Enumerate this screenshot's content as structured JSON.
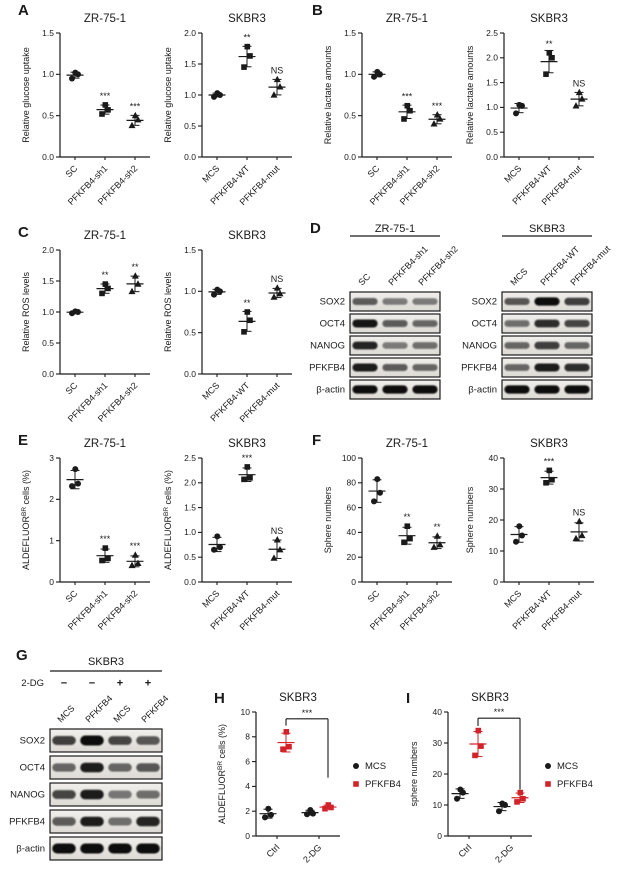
{
  "colors": {
    "black": "#1a1a1a",
    "red": "#d2232a",
    "background": "#ffffff"
  },
  "panels": {
    "A": {
      "letter": "A"
    },
    "B": {
      "letter": "B"
    },
    "C": {
      "letter": "C"
    },
    "D": {
      "letter": "D"
    },
    "E": {
      "letter": "E"
    },
    "F": {
      "letter": "F"
    },
    "G": {
      "letter": "G"
    },
    "H": {
      "letter": "H"
    },
    "I": {
      "letter": "I"
    }
  },
  "chart_data": [
    {
      "id": "A1",
      "panel": "A",
      "type": "scatter",
      "title": "ZR-75-1",
      "ylabel": "Relative glucose uptake",
      "ylim": [
        0,
        1.5
      ],
      "yticks": [
        "0.0",
        "0.5",
        "1.0",
        "1.5"
      ],
      "groups": [
        {
          "label": "SC",
          "marker": "circle",
          "values": [
            0.95,
            1.0,
            1.02
          ],
          "sig": ""
        },
        {
          "label": "PFKFB4-sh1",
          "marker": "square",
          "values": [
            0.52,
            0.57,
            0.63
          ],
          "sig": "***"
        },
        {
          "label": "PFKFB4-sh2",
          "marker": "triangle",
          "values": [
            0.38,
            0.45,
            0.5
          ],
          "sig": "***"
        }
      ]
    },
    {
      "id": "A2",
      "panel": "A",
      "type": "scatter",
      "title": "SKBR3",
      "ylabel": "Relative glucose uptake",
      "ylim": [
        0,
        2.0
      ],
      "yticks": [
        "0.0",
        "0.5",
        "1.0",
        "1.5",
        "2.0"
      ],
      "groups": [
        {
          "label": "MCS",
          "marker": "circle",
          "values": [
            0.97,
            1.0,
            1.03
          ],
          "sig": ""
        },
        {
          "label": "PFKFB4-WT",
          "marker": "square",
          "values": [
            1.45,
            1.63,
            1.78
          ],
          "sig": "**"
        },
        {
          "label": "PFKFB4-mut",
          "marker": "triangle",
          "values": [
            1.0,
            1.13,
            1.25
          ],
          "sig": "NS"
        }
      ]
    },
    {
      "id": "B1",
      "panel": "B",
      "type": "scatter",
      "title": "ZR-75-1",
      "ylabel": "Relative lactate amounts",
      "ylim": [
        0,
        1.5
      ],
      "yticks": [
        "0.0",
        "0.5",
        "1.0",
        "1.5"
      ],
      "groups": [
        {
          "label": "SC",
          "marker": "circle",
          "values": [
            0.97,
            1.0,
            1.03
          ],
          "sig": ""
        },
        {
          "label": "PFKFB4-sh1",
          "marker": "square",
          "values": [
            0.46,
            0.56,
            0.62
          ],
          "sig": "***"
        },
        {
          "label": "PFKFB4-sh2",
          "marker": "triangle",
          "values": [
            0.4,
            0.46,
            0.51
          ],
          "sig": "***"
        }
      ]
    },
    {
      "id": "B2",
      "panel": "B",
      "type": "scatter",
      "title": "SKBR3",
      "ylabel": "Relative lactate amounts",
      "ylim": [
        0,
        2.5
      ],
      "yticks": [
        "0.0",
        "0.5",
        "1.0",
        "1.5",
        "2.0",
        "2.5"
      ],
      "groups": [
        {
          "label": "MCS",
          "marker": "circle",
          "values": [
            0.88,
            1.03,
            1.05
          ],
          "sig": ""
        },
        {
          "label": "PFKFB4-WT",
          "marker": "square",
          "values": [
            1.67,
            2.0,
            2.1
          ],
          "sig": "**"
        },
        {
          "label": "PFKFB4-mut",
          "marker": "triangle",
          "values": [
            1.03,
            1.17,
            1.3
          ],
          "sig": "NS"
        }
      ]
    },
    {
      "id": "C1",
      "panel": "C",
      "type": "scatter",
      "title": "ZR-75-1",
      "ylabel": "Relative ROS levels",
      "ylim": [
        0,
        2.0
      ],
      "yticks": [
        "0.0",
        "0.5",
        "1.0",
        "1.5",
        "2.0"
      ],
      "groups": [
        {
          "label": "SC",
          "marker": "circle",
          "values": [
            0.98,
            1.0,
            1.01
          ],
          "sig": ""
        },
        {
          "label": "PFKFB4-sh1",
          "marker": "square",
          "values": [
            1.3,
            1.38,
            1.45
          ],
          "sig": "**"
        },
        {
          "label": "PFKFB4-sh2",
          "marker": "triangle",
          "values": [
            1.33,
            1.45,
            1.58
          ],
          "sig": "**"
        }
      ]
    },
    {
      "id": "C2",
      "panel": "C",
      "type": "scatter",
      "title": "SKBR3",
      "ylabel": "Relative ROS levels",
      "ylim": [
        0,
        1.5
      ],
      "yticks": [
        "0.0",
        "0.5",
        "1.0",
        "1.5"
      ],
      "groups": [
        {
          "label": "MCS",
          "marker": "circle",
          "values": [
            0.96,
            1.0,
            1.02
          ],
          "sig": ""
        },
        {
          "label": "PFKFB4-WT",
          "marker": "square",
          "values": [
            0.51,
            0.65,
            0.75
          ],
          "sig": "**"
        },
        {
          "label": "PFKFB4-mut",
          "marker": "triangle",
          "values": [
            0.93,
            0.97,
            1.04
          ],
          "sig": "NS"
        }
      ]
    },
    {
      "id": "E1",
      "panel": "E",
      "type": "scatter",
      "title": "ZR-75-1",
      "ylabel": "ALDEFLUOR^BR^ cells (%)",
      "ylim": [
        0,
        3
      ],
      "yticks": [
        "0",
        "1",
        "2",
        "3"
      ],
      "groups": [
        {
          "label": "SC",
          "marker": "circle",
          "values": [
            2.32,
            2.38,
            2.73
          ],
          "sig": ""
        },
        {
          "label": "PFKFB4-sh1",
          "marker": "square",
          "values": [
            0.52,
            0.57,
            0.82
          ],
          "sig": "***"
        },
        {
          "label": "PFKFB4-sh2",
          "marker": "triangle",
          "values": [
            0.4,
            0.45,
            0.65
          ],
          "sig": "***"
        }
      ]
    },
    {
      "id": "E2",
      "panel": "E",
      "type": "scatter",
      "title": "SKBR3",
      "ylabel": "ALDEFLUOR^BR^ cells (%)",
      "ylim": [
        0,
        2.5
      ],
      "yticks": [
        "0.0",
        "0.5",
        "1.0",
        "1.5",
        "2.0",
        "2.5"
      ],
      "groups": [
        {
          "label": "MCS",
          "marker": "circle",
          "values": [
            0.65,
            0.7,
            0.92
          ],
          "sig": ""
        },
        {
          "label": "PFKFB4-WT",
          "marker": "square",
          "values": [
            2.07,
            2.1,
            2.32
          ],
          "sig": "***"
        },
        {
          "label": "PFKFB4-mut",
          "marker": "triangle",
          "values": [
            0.48,
            0.65,
            0.85
          ],
          "sig": "NS"
        }
      ]
    },
    {
      "id": "F1",
      "panel": "F",
      "type": "scatter",
      "title": "ZR-75-1",
      "ylabel": "Sphere numbers",
      "ylim": [
        0,
        100
      ],
      "yticks": [
        "0",
        "20",
        "40",
        "60",
        "80",
        "100"
      ],
      "groups": [
        {
          "label": "SC",
          "marker": "circle",
          "values": [
            65,
            72,
            83
          ],
          "sig": ""
        },
        {
          "label": "PFKFB4-sh1",
          "marker": "square",
          "values": [
            32,
            35,
            45
          ],
          "sig": "**"
        },
        {
          "label": "PFKFB4-sh2",
          "marker": "triangle",
          "values": [
            28,
            30,
            37
          ],
          "sig": "**"
        }
      ]
    },
    {
      "id": "F2",
      "panel": "F",
      "type": "scatter",
      "title": "SKBR3",
      "ylabel": "Sphere numbers",
      "ylim": [
        0,
        40
      ],
      "yticks": [
        "0",
        "10",
        "20",
        "30",
        "40"
      ],
      "groups": [
        {
          "label": "MCS",
          "marker": "circle",
          "values": [
            13,
            15,
            18
          ],
          "sig": ""
        },
        {
          "label": "PFKFB4-WT",
          "marker": "square",
          "values": [
            32,
            33,
            36
          ],
          "sig": "***"
        },
        {
          "label": "PFKFB4-mut",
          "marker": "triangle",
          "values": [
            14,
            15,
            19.5
          ],
          "sig": "NS"
        }
      ]
    },
    {
      "id": "H",
      "panel": "H",
      "type": "grouped-scatter",
      "title": "SKBR3",
      "ylabel": "ALDEFLUOR^BR^ cells (%)",
      "ylim": [
        0,
        10
      ],
      "yticks": [
        "0",
        "2",
        "4",
        "6",
        "8",
        "10"
      ],
      "categories": [
        "Ctrl",
        "2-DG"
      ],
      "series": [
        {
          "name": "MCS",
          "marker": "circle",
          "color": "#1a1a1a",
          "values": [
            [
              1.5,
              1.7,
              2.2
            ],
            [
              1.75,
              1.8,
              2.1
            ]
          ]
        },
        {
          "name": "PFKFB4",
          "marker": "square",
          "color": "#d2232a",
          "values": [
            [
              7.0,
              7.2,
              8.4
            ],
            [
              2.2,
              2.3,
              2.5
            ]
          ]
        }
      ],
      "sig_bracket": {
        "label": "***",
        "x1_cat": 0,
        "x1_series": 1,
        "x2_cat": 1,
        "x2_series": 1,
        "y_top": 9.45,
        "y1_end": 8.9,
        "y2_end": 4.7
      },
      "legend_position": "right"
    },
    {
      "id": "I",
      "panel": "I",
      "type": "grouped-scatter",
      "title": "SKBR3",
      "ylabel": "sphere numbers",
      "ylim": [
        0,
        40
      ],
      "yticks": [
        "0",
        "10",
        "20",
        "30",
        "40"
      ],
      "categories": [
        "Ctrl",
        "2-DG"
      ],
      "series": [
        {
          "name": "MCS",
          "marker": "circle",
          "color": "#1a1a1a",
          "values": [
            [
              12,
              14,
              15
            ],
            [
              8,
              10,
              10.5
            ]
          ]
        },
        {
          "name": "PFKFB4",
          "marker": "square",
          "color": "#d2232a",
          "values": [
            [
              26,
              29,
              34
            ],
            [
              11,
              12,
              14
            ]
          ]
        }
      ],
      "sig_bracket": {
        "label": "***",
        "x1_cat": 0,
        "x1_series": 1,
        "x2_cat": 1,
        "x2_series": 1,
        "y_top": 38,
        "y1_end": 35.5,
        "y2_end": 15
      },
      "legend_position": "right"
    }
  ],
  "blots": [
    {
      "id": "D1",
      "panel": "D",
      "cellline": "ZR-75-1",
      "lanes": [
        "SC",
        "PFKFB4-sh1",
        "PFKFB4-sh2"
      ],
      "rows": [
        {
          "label": "SOX2",
          "bands": [
            0.5,
            0.32,
            0.32
          ]
        },
        {
          "label": "OCT4",
          "bands": [
            0.95,
            0.5,
            0.45
          ]
        },
        {
          "label": "NANOG",
          "bands": [
            0.85,
            0.32,
            0.4
          ]
        },
        {
          "label": "PFKFB4",
          "bands": [
            0.9,
            0.5,
            0.45
          ]
        },
        {
          "label": "β-actin",
          "bands": [
            1,
            1,
            1
          ]
        }
      ]
    },
    {
      "id": "D2",
      "panel": "D",
      "cellline": "SKBR3",
      "lanes": [
        "MCS",
        "PFKFB4-WT",
        "PFKFB4-mut"
      ],
      "rows": [
        {
          "label": "SOX2",
          "bands": [
            0.55,
            1.0,
            0.7
          ]
        },
        {
          "label": "OCT4",
          "bands": [
            0.4,
            0.8,
            0.65
          ]
        },
        {
          "label": "NANOG",
          "bands": [
            0.45,
            0.7,
            0.45
          ]
        },
        {
          "label": "PFKFB4",
          "bands": [
            0.45,
            0.9,
            0.8
          ]
        },
        {
          "label": "β-actin",
          "bands": [
            1,
            1,
            1
          ]
        }
      ]
    },
    {
      "id": "G1",
      "panel": "G",
      "cellline": "SKBR3",
      "treatment": {
        "label": "2-DG",
        "symbols": [
          "−",
          "−",
          "+",
          "+"
        ]
      },
      "lanes": [
        "MCS",
        "PFKFB4",
        "MCS",
        "PFKFB4"
      ],
      "rows": [
        {
          "label": "SOX2",
          "bands": [
            0.7,
            1.0,
            0.65,
            0.55
          ]
        },
        {
          "label": "OCT4",
          "bands": [
            0.45,
            0.9,
            0.45,
            0.55
          ]
        },
        {
          "label": "NANOG",
          "bands": [
            0.65,
            0.9,
            0.35,
            0.4
          ]
        },
        {
          "label": "PFKFB4",
          "bands": [
            0.5,
            0.9,
            0.4,
            0.85
          ]
        },
        {
          "label": "β-actin",
          "bands": [
            1,
            1,
            1,
            1
          ]
        }
      ]
    }
  ]
}
